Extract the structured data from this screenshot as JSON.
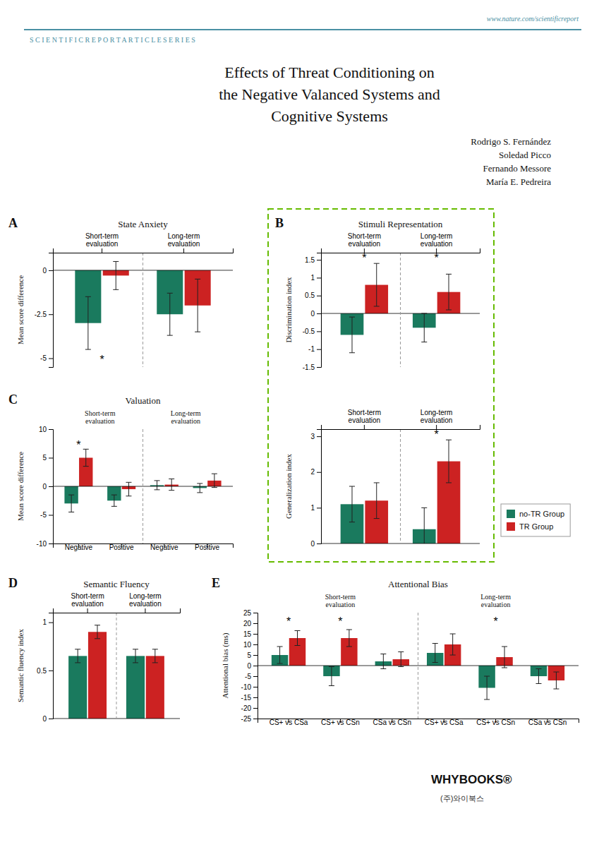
{
  "header": [
    "www.nature.com/scientificreport",
    "S C I E N T I F I C R E P O R T A R T I C L E S E R I E S"
  ],
  "title": "Effects of Threat Conditioning on\nthe Negative Valanced Systems and\nCognitive Systems",
  "authors": [
    "Rodrigo S. Fernández",
    "Soledad Picco",
    "Fernando Messore",
    "María E. Pedreira"
  ],
  "footer": [
    "WHYBOOKS®",
    "(주)와이북스"
  ],
  "chart_data": [
    {
      "type": "bar",
      "panel_label": "A",
      "title": "State Anxiety",
      "ylabel": "Mean score difference",
      "categories": [
        "Short-term\nevaluation",
        "Long-term\nevaluation"
      ],
      "series": [
        {
          "color": "#1a7a5e",
          "values": [
            -3.0,
            -2.5
          ],
          "errors": [
            1.5,
            1.2
          ]
        },
        {
          "color": "#cc2222",
          "values": [
            -0.3,
            -2.0
          ],
          "errors": [
            0.8,
            1.5
          ]
        }
      ],
      "ylim": [
        -5.5,
        1.0
      ],
      "yticks": [
        0,
        -2.5,
        -5
      ],
      "annotations": [
        {
          "text": "*",
          "x": 0,
          "y": -5.3
        }
      ]
    },
    {
      "type": "bar",
      "panel_label": "C",
      "title": "Valuation",
      "ylabel": "Mean score difference",
      "categories": [
        "Negative",
        "Positive",
        "Negative",
        "Positive"
      ],
      "series": [
        {
          "color": "#1a7a5e",
          "values": [
            -3.0,
            -2.5,
            0.2,
            -0.3
          ],
          "errors": [
            1.5,
            1.0,
            0.8,
            0.8
          ]
        },
        {
          "color": "#cc2222",
          "values": [
            5.0,
            -0.5,
            0.3,
            1.0
          ],
          "errors": [
            1.5,
            1.2,
            1.0,
            1.2
          ]
        }
      ],
      "ylim": [
        -10,
        10
      ],
      "yticks": [
        -10,
        -5,
        0,
        5,
        10
      ],
      "annotations": [
        {
          "text": "Short-term\nevaluation",
          "x": 0.5
        },
        {
          "text": "Long-term\nevaluation",
          "x": 2.5
        },
        {
          "text": "*",
          "x": 0,
          "y": 6.5
        }
      ]
    },
    {
      "type": "bar",
      "panel_label": "B",
      "title": "Stimuli Representation",
      "ylabel": "Discrimination index",
      "categories": [
        "Short-term\nevaluation",
        "Long-term\nevaluation"
      ],
      "series": [
        {
          "color": "#1a7a5e",
          "values": [
            -0.6,
            -0.4
          ],
          "errors": [
            0.5,
            0.4
          ]
        },
        {
          "color": "#cc2222",
          "values": [
            0.8,
            0.6
          ],
          "errors": [
            0.6,
            0.5
          ]
        }
      ],
      "ylim": [
        -1.5,
        1.7
      ],
      "yticks": [
        -1.5,
        -1,
        -0.5,
        0,
        0.5,
        1,
        1.5
      ],
      "annotations": [
        {
          "text": "*",
          "x": 0,
          "y": 1.45
        },
        {
          "text": "*",
          "x": 1,
          "y": 1.45
        }
      ]
    },
    {
      "type": "bar",
      "ylabel": "Generalization index",
      "categories": [
        "Short-term\nevaluation",
        "Long-term\nevaluation"
      ],
      "series": [
        {
          "name": "no-TR Group",
          "color": "#1a7a5e",
          "values": [
            1.1,
            0.4
          ],
          "errors": [
            0.5,
            0.6
          ]
        },
        {
          "name": "TR Group",
          "color": "#cc2222",
          "values": [
            1.2,
            2.3
          ],
          "errors": [
            0.5,
            0.6
          ]
        }
      ],
      "ylim": [
        0,
        3.2
      ],
      "yticks": [
        0,
        1,
        2,
        3
      ],
      "legend": "right",
      "annotations": [
        {
          "text": "*",
          "x": 1,
          "y": 2.95
        }
      ]
    },
    {
      "type": "bar",
      "panel_label": "D",
      "title": "Semantic Fluency",
      "ylabel": "Semantic fluency index",
      "categories": [
        "Short-term\nevaluation",
        "Long-term\nevaluation"
      ],
      "series": [
        {
          "color": "#1a7a5e",
          "values": [
            0.65,
            0.65
          ],
          "errors": [
            0.07,
            0.07
          ]
        },
        {
          "color": "#cc2222",
          "values": [
            0.9,
            0.65
          ],
          "errors": [
            0.07,
            0.07
          ]
        }
      ],
      "ylim": [
        0.0,
        1.1
      ],
      "yticks": [
        0,
        0.5,
        1
      ]
    },
    {
      "type": "bar",
      "panel_label": "E",
      "title": "Attentional Bias",
      "ylabel": "Attentional bias (ms)",
      "categories": [
        "CS+ vs CSa",
        "CS+ vs CSn",
        "CSa vs CSn",
        "CS+ vs CSa",
        "CS+ vs CSn",
        "CSa vs CSn"
      ],
      "series": [
        {
          "color": "#1a7a5e",
          "values": [
            5.0,
            -5.0,
            2.0,
            6.0,
            -10.5,
            -5.0
          ],
          "errors": [
            4.0,
            4.5,
            3.5,
            4.5,
            5.5,
            3.5
          ]
        },
        {
          "color": "#cc2222",
          "values": [
            13.0,
            13.0,
            3.0,
            10.0,
            4.0,
            -7.0
          ],
          "errors": [
            3.5,
            4.0,
            3.5,
            5.0,
            5.0,
            4.0
          ]
        }
      ],
      "ylim": [
        -25,
        25
      ],
      "yticks": [
        -25,
        -20,
        -15,
        -10,
        -5,
        0,
        5,
        10,
        15,
        20,
        25
      ],
      "annotations": [
        {
          "text": "Short-term\nevaluation",
          "x": 1
        },
        {
          "text": "Long-term\nevaluation",
          "x": 4
        },
        {
          "text": "*",
          "x": 0,
          "y": 19
        },
        {
          "text": "*",
          "x": 1,
          "y": 19
        },
        {
          "text": "*",
          "x": 4,
          "y": 19
        }
      ]
    }
  ]
}
